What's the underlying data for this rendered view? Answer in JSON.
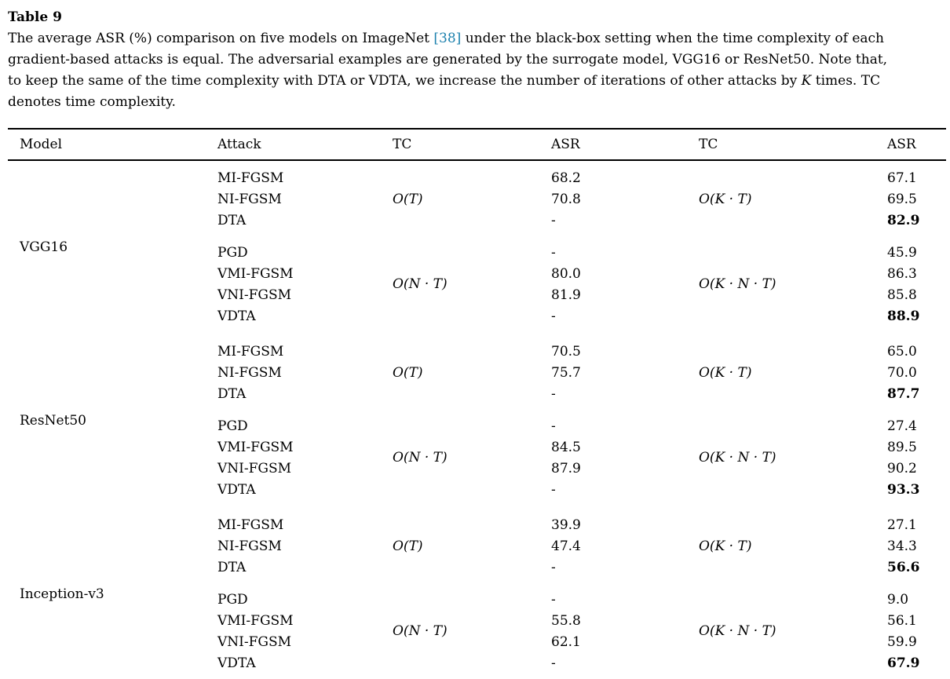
{
  "title": "Table 9",
  "caption": {
    "line1_pre": "The average ASR (%) comparison on five models on ImageNet ",
    "line1_cite": "[38]",
    "line1_post": " under the black-box setting when the time complexity of each",
    "line2": "gradient-based attacks is equal. The adversarial examples are generated by the surrogate model, VGG16 or ResNet50. Note that,",
    "line3_pre": "to keep the same of the time complexity with DTA or VDTA, we increase the number of iterations of other attacks by ",
    "line3_var": "K",
    "line3_post": " times. TC",
    "line4": "denotes time complexity."
  },
  "colors": {
    "citation": "#1b80ad",
    "text": "#000000",
    "rule": "#000000"
  },
  "table": {
    "headers": {
      "model": "Model",
      "attack": "Attack",
      "tc1": "TC",
      "asr1": "ASR",
      "tc2": "TC",
      "asr2": "ASR"
    },
    "groups": [
      {
        "model": "VGG16",
        "blocks": [
          {
            "tc1": "O(T)",
            "tc2": "O(K · T)",
            "rows": [
              {
                "attack": "MI-FGSM",
                "asr1": "68.2",
                "asr2": "67.1",
                "bold": false
              },
              {
                "attack": "NI-FGSM",
                "asr1": "70.8",
                "asr2": "69.5",
                "bold": false
              },
              {
                "attack": "DTA",
                "asr1": "-",
                "asr2": "82.9",
                "bold": true
              }
            ]
          },
          {
            "tc1": "O(N · T)",
            "tc2": "O(K · N · T)",
            "rows": [
              {
                "attack": "PGD",
                "asr1": "-",
                "asr2": "45.9",
                "bold": false
              },
              {
                "attack": "VMI-FGSM",
                "asr1": "80.0",
                "asr2": "86.3",
                "bold": false
              },
              {
                "attack": "VNI-FGSM",
                "asr1": "81.9",
                "asr2": "85.8",
                "bold": false
              },
              {
                "attack": "VDTA",
                "asr1": "-",
                "asr2": "88.9",
                "bold": true
              }
            ]
          }
        ]
      },
      {
        "model": "ResNet50",
        "blocks": [
          {
            "tc1": "O(T)",
            "tc2": "O(K · T)",
            "rows": [
              {
                "attack": "MI-FGSM",
                "asr1": "70.5",
                "asr2": "65.0",
                "bold": false
              },
              {
                "attack": "NI-FGSM",
                "asr1": "75.7",
                "asr2": "70.0",
                "bold": false
              },
              {
                "attack": "DTA",
                "asr1": "-",
                "asr2": "87.7",
                "bold": true
              }
            ]
          },
          {
            "tc1": "O(N · T)",
            "tc2": "O(K · N · T)",
            "rows": [
              {
                "attack": "PGD",
                "asr1": "-",
                "asr2": "27.4",
                "bold": false
              },
              {
                "attack": "VMI-FGSM",
                "asr1": "84.5",
                "asr2": "89.5",
                "bold": false
              },
              {
                "attack": "VNI-FGSM",
                "asr1": "87.9",
                "asr2": "90.2",
                "bold": false
              },
              {
                "attack": "VDTA",
                "asr1": "-",
                "asr2": "93.3",
                "bold": true
              }
            ]
          }
        ]
      },
      {
        "model": "Inception-v3",
        "blocks": [
          {
            "tc1": "O(T)",
            "tc2": "O(K · T)",
            "rows": [
              {
                "attack": "MI-FGSM",
                "asr1": "39.9",
                "asr2": "27.1",
                "bold": false
              },
              {
                "attack": "NI-FGSM",
                "asr1": "47.4",
                "asr2": "34.3",
                "bold": false
              },
              {
                "attack": "DTA",
                "asr1": "-",
                "asr2": "56.6",
                "bold": true
              }
            ]
          },
          {
            "tc1": "O(N · T)",
            "tc2": "O(K · N · T)",
            "rows": [
              {
                "attack": "PGD",
                "asr1": "-",
                "asr2": "9.0",
                "bold": false
              },
              {
                "attack": "VMI-FGSM",
                "asr1": "55.8",
                "asr2": "56.1",
                "bold": false
              },
              {
                "attack": "VNI-FGSM",
                "asr1": "62.1",
                "asr2": "59.9",
                "bold": false
              },
              {
                "attack": "VDTA",
                "asr1": "-",
                "asr2": "67.9",
                "bold": true
              }
            ]
          }
        ]
      }
    ]
  }
}
